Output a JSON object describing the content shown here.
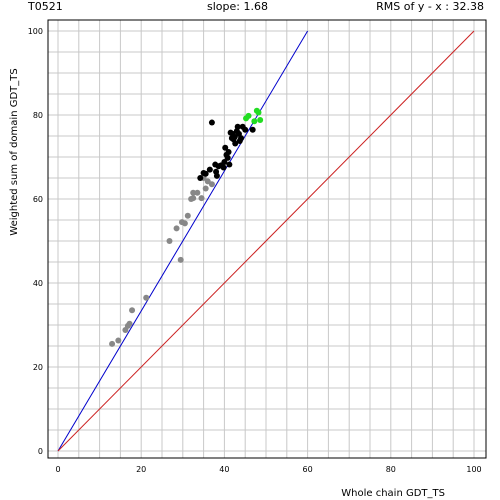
{
  "header": {
    "id": "T0521",
    "slope": "slope: 1.68",
    "rms": "RMS of  y - x : 32.38"
  },
  "chart_data": {
    "type": "scatter",
    "title": "",
    "xlabel": "Whole chain GDT_TS",
    "ylabel": "Weighted sum of domain GDT_TS",
    "xlim": [
      0,
      100
    ],
    "ylim": [
      0,
      100
    ],
    "x_ticks": [
      0,
      20,
      40,
      60,
      80,
      100
    ],
    "y_ticks": [
      0,
      20,
      40,
      60,
      80,
      100
    ],
    "grid": true,
    "slope": 1.68,
    "lines": [
      {
        "name": "fit",
        "color": "#0000cc",
        "x": [
          0,
          60
        ],
        "y": [
          0,
          100
        ]
      },
      {
        "name": "diagonal",
        "color": "#cc2222",
        "x": [
          0,
          100
        ],
        "y": [
          0,
          100
        ]
      }
    ],
    "series": [
      {
        "color": "#888888",
        "x": [
          13,
          14.5,
          16.2,
          16.8,
          17.2,
          17.8,
          21.2,
          26.8,
          28.5,
          29.5,
          29.8,
          30.5,
          31.2,
          32,
          32.5,
          33.5,
          34.5,
          35.5,
          36,
          37,
          32.5,
          35
        ],
        "y": [
          25.5,
          26.3,
          28.8,
          29.8,
          30.3,
          33.5,
          36.5,
          50,
          53,
          45.5,
          54.5,
          54.2,
          56,
          60,
          61.5,
          61.5,
          60.2,
          62.5,
          64.2,
          63.5,
          60.2,
          65
        ]
      },
      {
        "color": "#000000",
        "x": [
          34.2,
          35,
          35.5,
          36.5,
          37,
          37.8,
          38.2,
          38.6,
          39.2,
          39.8,
          40,
          40.2,
          40.8,
          41,
          41.2,
          41.8,
          42,
          42.2,
          42.6,
          43,
          43.2,
          43.5,
          44,
          44.4,
          45,
          46.8,
          43.7,
          38,
          40.5,
          41.5,
          42.5
        ],
        "y": [
          65,
          66.2,
          66,
          67,
          78.2,
          68.2,
          65.5,
          67.8,
          68,
          67.5,
          68.8,
          72.2,
          69.8,
          71.2,
          68.2,
          74.5,
          75.5,
          74.2,
          73.2,
          76.2,
          77.2,
          75.5,
          74.5,
          77.2,
          76.5,
          76.5,
          73.8,
          66.5,
          70.5,
          75.8,
          74.8
        ]
      },
      {
        "color": "#22dd22",
        "x": [
          45.2,
          45.8,
          47.2,
          47.8,
          48.2,
          48.6
        ],
        "y": [
          79.2,
          79.8,
          78.5,
          81,
          80.6,
          78.8
        ]
      }
    ]
  }
}
